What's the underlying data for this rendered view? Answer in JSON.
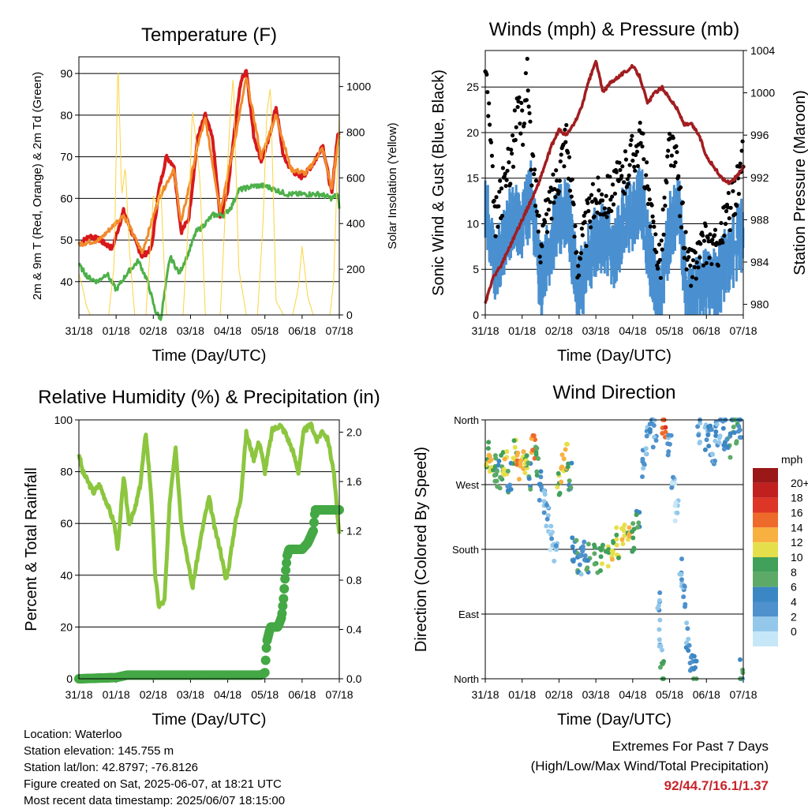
{
  "chart_data": [
    {
      "type": "line",
      "title": "Temperature (F)",
      "xlabel": "Time (Day/UTC)",
      "ylabel": "2m & 9m T (Red, Orange) & 2m Td (Green)",
      "ylabel_right": "Solar Insolation (Yellow)",
      "x_ticks": [
        "31/18",
        "01/18",
        "02/18",
        "03/18",
        "04/18",
        "05/18",
        "06/18",
        "07/18"
      ],
      "y_ticks": [
        40,
        50,
        60,
        70,
        80,
        90
      ],
      "ylim": [
        32,
        94
      ],
      "y2_ticks": [
        0,
        200,
        400,
        600,
        800,
        1000
      ],
      "y2lim": [
        0,
        1130
      ],
      "grid": "horizontal",
      "series": [
        {
          "name": "2m T",
          "color": "#d7191c",
          "axis": "left",
          "x": [
            0,
            0.3,
            0.55,
            0.9,
            1.2,
            1.5,
            1.7,
            1.95,
            2.15,
            2.35,
            2.55,
            2.75,
            2.95,
            3.2,
            3.4,
            3.6,
            3.8,
            4.0,
            4.15,
            4.35,
            4.5,
            4.7,
            4.9,
            5.1,
            5.3,
            5.5,
            5.7,
            5.95,
            6.1,
            6.35,
            6.55,
            6.8,
            6.95,
            7.0
          ],
          "values": [
            49,
            51,
            50,
            48,
            57,
            50,
            46,
            48,
            62,
            70,
            68,
            52,
            55,
            75,
            80,
            74,
            55,
            62,
            74,
            88,
            91,
            75,
            69,
            74,
            82,
            70,
            67,
            65,
            66,
            69,
            73,
            61,
            75,
            76
          ]
        },
        {
          "name": "9m T",
          "color": "#f18a2b",
          "axis": "left",
          "x": [
            0,
            0.55,
            1.2,
            1.7,
            2.15,
            2.55,
            2.75,
            3.2,
            3.4,
            3.8,
            4.15,
            4.5,
            4.9,
            5.3,
            5.7,
            6.1,
            6.55,
            6.8,
            6.95,
            7.0
          ],
          "values": [
            49,
            50,
            56,
            47,
            60,
            67,
            54,
            73,
            79,
            57,
            72,
            89,
            70,
            80,
            67,
            66,
            72,
            62,
            73,
            75
          ]
        },
        {
          "name": "2m Td",
          "color": "#4db04a",
          "axis": "left",
          "x": [
            0,
            0.25,
            0.5,
            0.75,
            1.0,
            1.3,
            1.6,
            1.85,
            2.05,
            2.2,
            2.45,
            2.7,
            2.95,
            3.15,
            3.3,
            3.6,
            3.9,
            4.1,
            4.3,
            4.7,
            5.0,
            5.3,
            5.6,
            5.9,
            6.2,
            6.5,
            6.8,
            6.95,
            7.0
          ],
          "values": [
            44,
            41,
            40,
            42,
            38,
            42,
            45,
            40,
            33,
            31,
            46,
            42,
            47,
            52,
            53,
            56,
            56,
            58,
            62,
            63,
            63,
            62,
            61,
            61,
            61,
            61,
            60,
            61,
            58
          ]
        },
        {
          "name": "Solar Insolation",
          "color": "#fbd33f",
          "axis": "right",
          "x": [
            0,
            0.1,
            0.2,
            0.3,
            0.5,
            0.8,
            0.95,
            1.05,
            1.15,
            1.25,
            1.35,
            1.5,
            1.8,
            1.9,
            2.0,
            2.1,
            2.2,
            2.35,
            2.6,
            2.8,
            2.95,
            3.05,
            3.15,
            3.25,
            3.4,
            3.6,
            3.8,
            3.95,
            4.05,
            4.15,
            4.3,
            4.5,
            4.6,
            4.8,
            4.95,
            5.05,
            5.15,
            5.3,
            5.5,
            5.75,
            5.9,
            6.0,
            6.15,
            6.3,
            6.5,
            6.75,
            6.85,
            6.95,
            7.0
          ],
          "values": [
            180,
            120,
            40,
            0,
            0,
            0,
            220,
            1120,
            520,
            650,
            300,
            0,
            0,
            250,
            520,
            480,
            560,
            0,
            0,
            0,
            420,
            900,
            760,
            600,
            0,
            0,
            0,
            500,
            820,
            1050,
            200,
            0,
            0,
            0,
            400,
            880,
            1000,
            60,
            0,
            0,
            120,
            300,
            80,
            0,
            0,
            0,
            150,
            650,
            880
          ]
        }
      ]
    },
    {
      "type": "scatter",
      "title": "Winds (mph) & Pressure (mb)",
      "xlabel": "Time (Day/UTC)",
      "ylabel": "Sonic Wind & Gust (Blue, Black)",
      "ylabel_right": "Station Pressure (Maroon)",
      "x_ticks": [
        "31/18",
        "01/18",
        "02/18",
        "03/18",
        "04/18",
        "05/18",
        "06/18",
        "07/18"
      ],
      "y_ticks": [
        0,
        5,
        10,
        15,
        20,
        25
      ],
      "ylim": [
        0,
        29
      ],
      "y2_ticks": [
        980,
        984,
        988,
        992,
        996,
        1000,
        1004
      ],
      "y2lim": [
        979,
        1004
      ],
      "grid": "horizontal",
      "series": [
        {
          "name": "Sonic Wind",
          "color": "#4a90d0",
          "axis": "left",
          "x": [
            0,
            0.25,
            0.5,
            0.75,
            1.0,
            1.25,
            1.5,
            1.75,
            2.0,
            2.25,
            2.5,
            2.75,
            3.0,
            3.25,
            3.5,
            3.75,
            4.0,
            4.25,
            4.5,
            4.75,
            5.0,
            5.25,
            5.5,
            5.75,
            6.0,
            6.25,
            6.5,
            6.75,
            7.0
          ],
          "values": [
            13,
            6,
            8,
            12,
            10,
            14,
            4,
            8,
            11,
            12,
            3,
            6,
            9,
            9,
            7,
            11,
            12,
            13,
            6,
            2,
            10,
            12,
            2,
            3,
            4,
            4,
            6,
            8,
            10
          ]
        },
        {
          "name": "Gust",
          "color": "#000000",
          "axis": "left",
          "x": [
            0,
            0.1,
            0.25,
            0.5,
            0.75,
            0.9,
            1.0,
            1.15,
            1.25,
            1.5,
            1.75,
            2.0,
            2.2,
            2.5,
            2.75,
            3.0,
            3.25,
            3.5,
            3.75,
            4.0,
            4.25,
            4.5,
            4.75,
            5.0,
            5.2,
            5.5,
            5.75,
            6.0,
            6.25,
            6.5,
            6.75,
            7.0
          ],
          "values": [
            27,
            22,
            10,
            14,
            18,
            24,
            20,
            27,
            17,
            8,
            12,
            16,
            20,
            6,
            10,
            13,
            13,
            14,
            15,
            18,
            19,
            10,
            6,
            19,
            16,
            5,
            6,
            8,
            7,
            10,
            13,
            17
          ]
        },
        {
          "name": "Station Pressure",
          "color": "#a11d20",
          "axis": "right",
          "x": [
            0,
            0.2,
            0.4,
            0.6,
            0.8,
            1.0,
            1.2,
            1.4,
            1.6,
            1.8,
            2.0,
            2.2,
            2.4,
            2.6,
            2.8,
            3.0,
            3.2,
            3.4,
            3.6,
            3.8,
            4.0,
            4.2,
            4.4,
            4.6,
            4.8,
            5.0,
            5.2,
            5.4,
            5.6,
            5.8,
            6.0,
            6.2,
            6.4,
            6.6,
            6.8,
            7.0
          ],
          "values": [
            980,
            982.5,
            983.5,
            985,
            986.5,
            988,
            989.5,
            991,
            993,
            995,
            996.5,
            996,
            997,
            998.5,
            1001,
            1003,
            1000,
            1001,
            1001.5,
            1002,
            1002.5,
            1001.5,
            999,
            1000,
            1000.5,
            999.5,
            998.5,
            997,
            997,
            996,
            994,
            993,
            992,
            991.5,
            992,
            993
          ]
        }
      ]
    },
    {
      "type": "line",
      "title": "Relative Humidity (%) & Precipitation (in)",
      "xlabel": "Time (Day/UTC)",
      "ylabel": "Percent & Total Rainfall",
      "x_ticks": [
        "31/18",
        "01/18",
        "02/18",
        "03/18",
        "04/18",
        "05/18",
        "06/18",
        "07/18"
      ],
      "y_ticks": [
        0,
        20,
        40,
        60,
        80,
        100
      ],
      "ylim": [
        0,
        100
      ],
      "y2_ticks": [
        0.0,
        0.4,
        0.8,
        1.2,
        1.6,
        2.0
      ],
      "y2lim": [
        0,
        2.1
      ],
      "grid": "horizontal",
      "series": [
        {
          "name": "Relative Humidity",
          "color": "#8cc63f",
          "axis": "left",
          "x": [
            0,
            0.1,
            0.25,
            0.4,
            0.55,
            0.75,
            0.95,
            1.05,
            1.2,
            1.35,
            1.5,
            1.65,
            1.8,
            1.95,
            2.05,
            2.15,
            2.3,
            2.45,
            2.6,
            2.75,
            2.9,
            3.05,
            3.2,
            3.35,
            3.5,
            3.65,
            3.8,
            3.95,
            4.05,
            4.2,
            4.35,
            4.5,
            4.7,
            4.85,
            5.0,
            5.2,
            5.4,
            5.55,
            5.75,
            5.9,
            6.05,
            6.25,
            6.4,
            6.55,
            6.7,
            6.85,
            7.0
          ],
          "values": [
            87,
            80,
            76,
            72,
            75,
            68,
            60,
            50,
            78,
            60,
            65,
            75,
            95,
            70,
            40,
            28,
            30,
            70,
            90,
            60,
            48,
            35,
            48,
            60,
            70,
            58,
            50,
            38,
            45,
            60,
            70,
            95,
            85,
            92,
            80,
            96,
            98,
            95,
            88,
            80,
            96,
            98,
            92,
            96,
            92,
            80,
            55
          ]
        },
        {
          "name": "Total Rainfall",
          "color": "#44a844",
          "axis": "right",
          "x": [
            0,
            1.0,
            1.3,
            4.9,
            5.0,
            5.05,
            5.15,
            5.35,
            5.45,
            5.5,
            5.55,
            5.6,
            5.65,
            5.7,
            5.75,
            6.0,
            6.15,
            6.3,
            6.35,
            6.4,
            7.0
          ],
          "values": [
            0,
            0.01,
            0.03,
            0.03,
            0.05,
            0.3,
            0.42,
            0.42,
            0.5,
            0.65,
            0.85,
            1.0,
            1.05,
            1.05,
            1.05,
            1.05,
            1.1,
            1.2,
            1.37,
            1.37,
            1.37
          ]
        }
      ]
    },
    {
      "type": "scatter",
      "title": "Wind Direction",
      "xlabel": "Time (Day/UTC)",
      "ylabel": "Direction (Colored By Speed)",
      "x_ticks": [
        "31/18",
        "01/18",
        "02/18",
        "03/18",
        "04/18",
        "05/18",
        "06/18",
        "07/18"
      ],
      "y_ticks": [
        "North",
        "East",
        "South",
        "West",
        "North"
      ],
      "y_tick_values": [
        0,
        90,
        180,
        270,
        360
      ],
      "ylim": [
        0,
        360
      ],
      "grid": "horizontal",
      "colorbar": {
        "unit": "mph",
        "labels": [
          "0",
          "2",
          "4",
          "6",
          "8",
          "10",
          "12",
          "14",
          "16",
          "18",
          "20+"
        ],
        "colors": [
          "#c6e7f7",
          "#93c8ea",
          "#4e91cc",
          "#3b87c4",
          "#5daa68",
          "#41a05a",
          "#e6df4c",
          "#f8b040",
          "#ee6a2a",
          "#dd3526",
          "#c0211f",
          "#9a1818"
        ]
      },
      "points": [
        [
          0.05,
          307,
          12
        ],
        [
          0.15,
          300,
          14
        ],
        [
          0.25,
          290,
          10
        ],
        [
          0.35,
          285,
          8
        ],
        [
          0.45,
          295,
          11
        ],
        [
          0.55,
          305,
          13
        ],
        [
          0.65,
          280,
          7
        ],
        [
          0.8,
          310,
          12
        ],
        [
          0.9,
          300,
          16
        ],
        [
          1.0,
          312,
          14
        ],
        [
          1.1,
          295,
          12
        ],
        [
          1.2,
          285,
          9
        ],
        [
          1.3,
          320,
          16
        ],
        [
          1.4,
          305,
          10
        ],
        [
          1.5,
          268,
          6
        ],
        [
          1.6,
          240,
          5
        ],
        [
          1.7,
          220,
          4
        ],
        [
          1.8,
          200,
          3
        ],
        [
          1.9,
          185,
          3
        ],
        [
          2.0,
          270,
          12
        ],
        [
          2.1,
          295,
          14
        ],
        [
          2.2,
          305,
          13
        ],
        [
          2.3,
          280,
          8
        ],
        [
          2.4,
          180,
          6
        ],
        [
          2.5,
          170,
          7
        ],
        [
          2.6,
          160,
          5
        ],
        [
          2.7,
          175,
          6
        ],
        [
          2.8,
          165,
          8
        ],
        [
          3.0,
          168,
          10
        ],
        [
          3.15,
          172,
          11
        ],
        [
          3.3,
          178,
          12
        ],
        [
          3.45,
          185,
          13
        ],
        [
          3.6,
          190,
          12
        ],
        [
          3.75,
          200,
          14
        ],
        [
          3.9,
          205,
          13
        ],
        [
          4.0,
          195,
          11
        ],
        [
          4.15,
          215,
          9
        ],
        [
          4.3,
          300,
          5
        ],
        [
          4.4,
          330,
          4
        ],
        [
          4.5,
          350,
          6
        ],
        [
          4.6,
          340,
          5
        ],
        [
          4.7,
          100,
          4
        ],
        [
          4.75,
          60,
          3
        ],
        [
          4.8,
          10,
          10
        ],
        [
          4.85,
          355,
          18
        ],
        [
          5.0,
          320,
          4
        ],
        [
          5.1,
          280,
          3
        ],
        [
          5.2,
          230,
          2
        ],
        [
          5.3,
          150,
          3
        ],
        [
          5.4,
          110,
          4
        ],
        [
          5.5,
          60,
          5
        ],
        [
          5.6,
          20,
          6
        ],
        [
          5.7,
          10,
          8
        ],
        [
          5.8,
          350,
          4
        ],
        [
          6.0,
          340,
          5
        ],
        [
          6.1,
          330,
          6
        ],
        [
          6.2,
          320,
          4
        ],
        [
          6.3,
          345,
          5
        ],
        [
          6.4,
          355,
          4
        ],
        [
          6.5,
          340,
          6
        ],
        [
          6.6,
          330,
          7
        ],
        [
          6.7,
          350,
          8
        ],
        [
          6.8,
          345,
          9
        ],
        [
          6.9,
          355,
          6
        ],
        [
          6.95,
          5,
          8
        ]
      ]
    }
  ],
  "footer": {
    "location": "Location: Waterloo",
    "elevation": "Station elevation: 145.755 m",
    "latlon": "Station lat/lon: 42.8797; -76.8126",
    "created": "Figure created on Sat, 2025-06-07, at 18:21 UTC",
    "recent": "Most recent data timestamp: 2025/06/07 18:15:00"
  },
  "extremes": {
    "heading": "Extremes For Past 7 Days",
    "subheading": "(High/Low/Max Wind/Total Precipitation)",
    "values": "92/44.7/16.1/1.37"
  }
}
